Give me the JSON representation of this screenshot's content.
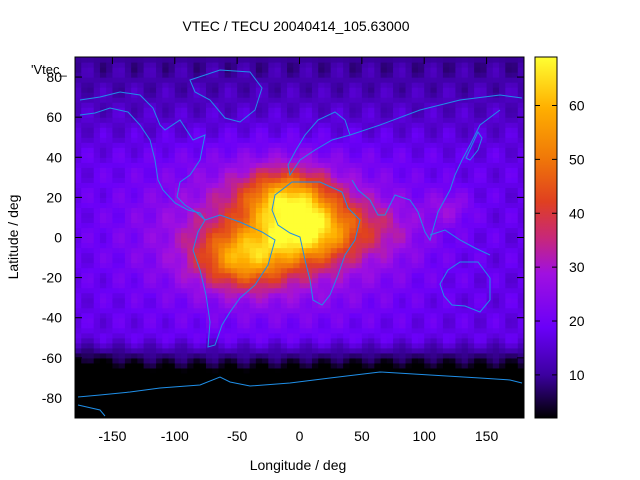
{
  "chart_data": {
    "type": "heatmap",
    "title": "VTEC / TECU 20040414_105.63000",
    "xlabel": "Longitude / deg",
    "ylabel": "Latitude / deg",
    "key_label": "'Vtec_",
    "xlim": [
      -180,
      180
    ],
    "ylim": [
      -90,
      90
    ],
    "x_ticks": [
      -150,
      -100,
      -50,
      0,
      50,
      100,
      150
    ],
    "y_ticks": [
      -80,
      -60,
      -40,
      -20,
      0,
      20,
      40,
      60,
      80
    ],
    "colorbar": {
      "range": [
        2,
        69
      ],
      "ticks": [
        10,
        20,
        30,
        40,
        50,
        60
      ],
      "palette": [
        "#000000",
        "#3c00a0",
        "#6a00f8",
        "#a010e0",
        "#c82878",
        "#e04020",
        "#f07808",
        "#ffb000",
        "#ffff33"
      ]
    },
    "grid": false,
    "map_overlay": "continent outlines",
    "map_line_color": "#1f8fe8",
    "peak_regions": [
      {
        "lon": -45,
        "lat": -10,
        "vtec": 64
      },
      {
        "lon": -10,
        "lat": 20,
        "vtec": 66
      },
      {
        "lon": 5,
        "lat": 3,
        "vtec": 68
      }
    ]
  }
}
